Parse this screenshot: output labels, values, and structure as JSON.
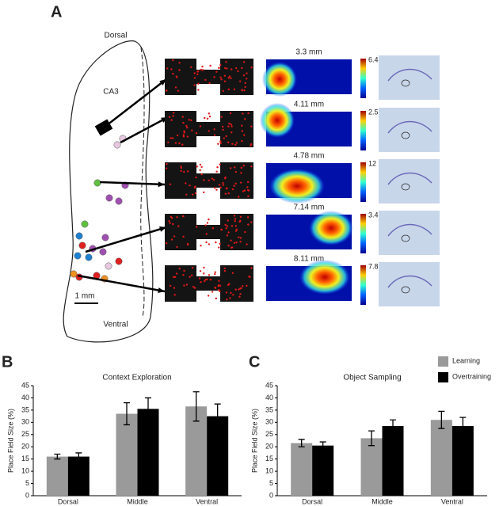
{
  "panel_a": {
    "label": "A",
    "top_label": "Dorsal",
    "region": "CA3",
    "scale": "1 mm",
    "bottom_label": "Ventral",
    "depths": [
      "3.3 mm",
      "4.11 mm",
      "4.78 mm",
      "7.14 mm",
      "8.11 mm"
    ],
    "colorbar_max": [
      "6.4",
      "2.5",
      "12",
      "3.4",
      "7.8"
    ]
  },
  "chart_data": [
    {
      "type": "bar",
      "panel": "B",
      "title": "Context Exploration",
      "ylabel": "Place Field Size (%)",
      "categories": [
        "Dorsal",
        "Middle",
        "Ventral"
      ],
      "series": [
        {
          "name": "Learning",
          "color": "#9a9a9a",
          "values": [
            16,
            33.5,
            36.5
          ],
          "errors": [
            1,
            4.5,
            6
          ]
        },
        {
          "name": "Overtraining",
          "color": "#000000",
          "values": [
            16,
            35.5,
            32.5
          ],
          "errors": [
            1.5,
            4.5,
            5
          ]
        }
      ],
      "ylim": [
        0,
        45
      ],
      "yticks": [
        0,
        5,
        10,
        15,
        20,
        25,
        30,
        35,
        40,
        45
      ]
    },
    {
      "type": "bar",
      "panel": "C",
      "title": "Object Sampling",
      "ylabel": "Place Field Size (%)",
      "categories": [
        "Dorsal",
        "Middle",
        "Ventral"
      ],
      "series": [
        {
          "name": "Learning",
          "color": "#9a9a9a",
          "values": [
            21.5,
            23.5,
            31
          ],
          "errors": [
            1.5,
            3,
            3.5
          ]
        },
        {
          "name": "Overtraining",
          "color": "#000000",
          "values": [
            20.5,
            28.5,
            28.5
          ],
          "errors": [
            1.5,
            2.5,
            3.5
          ]
        }
      ],
      "ylim": [
        0,
        45
      ],
      "yticks": [
        0,
        5,
        10,
        15,
        20,
        25,
        30,
        35,
        40,
        45
      ],
      "legend": "top-right"
    }
  ]
}
